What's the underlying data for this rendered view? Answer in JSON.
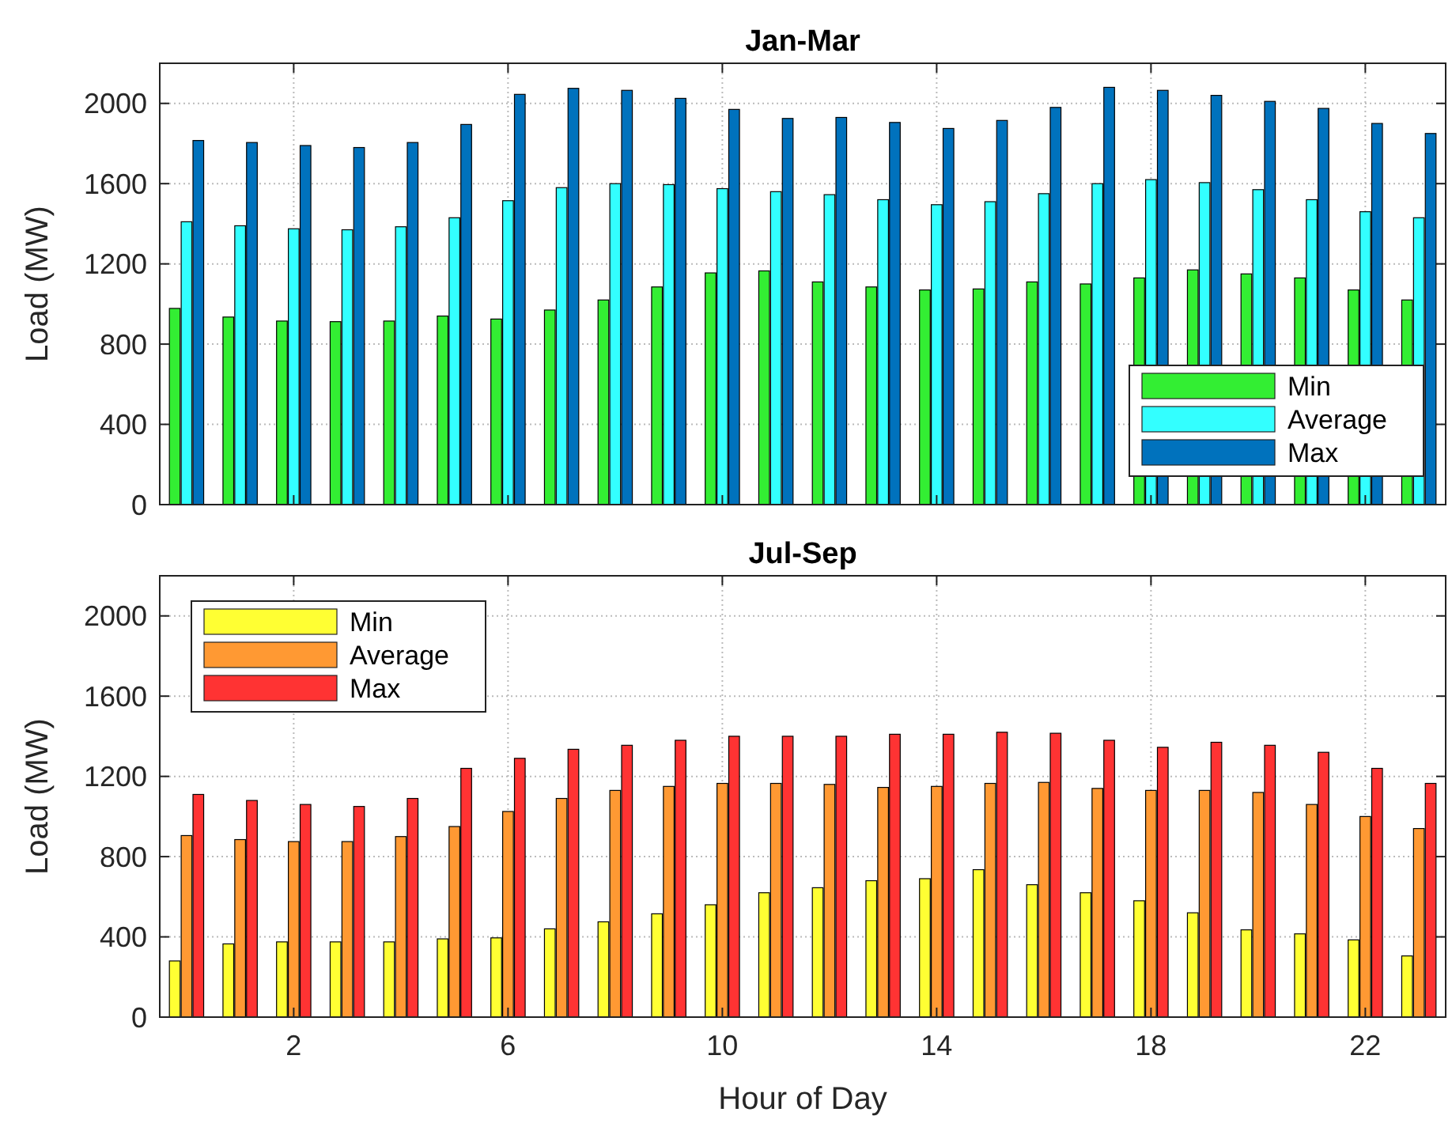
{
  "chart_data": [
    {
      "type": "bar",
      "title": "Jan-Mar",
      "ylabel": "Load (MW)",
      "x": [
        0,
        1,
        2,
        3,
        4,
        5,
        6,
        7,
        8,
        9,
        10,
        11,
        12,
        13,
        14,
        15,
        16,
        17,
        18,
        19,
        20,
        21,
        22,
        23
      ],
      "xlim": [
        -0.5,
        23.5
      ],
      "xticks": [
        2,
        6,
        10,
        14,
        18,
        22
      ],
      "ylim": [
        0,
        2200
      ],
      "yticks": [
        0,
        400,
        800,
        1200,
        1600,
        2000
      ],
      "grid": true,
      "legend": "bottom right",
      "tick_labels": "y",
      "series": [
        {
          "name": "Min",
          "color": "#33ee33",
          "values": [
            978,
            935,
            915,
            912,
            915,
            940,
            925,
            970,
            1020,
            1085,
            1155,
            1165,
            1110,
            1085,
            1070,
            1075,
            1110,
            1100,
            1130,
            1170,
            1150,
            1130,
            1070,
            1020
          ]
        },
        {
          "name": "Average",
          "color": "#33ffff",
          "values": [
            1410,
            1390,
            1375,
            1370,
            1385,
            1430,
            1515,
            1580,
            1600,
            1595,
            1575,
            1560,
            1545,
            1520,
            1495,
            1510,
            1550,
            1600,
            1620,
            1605,
            1570,
            1520,
            1460,
            1430
          ]
        },
        {
          "name": "Max",
          "color": "#0072bd",
          "values": [
            1815,
            1805,
            1790,
            1780,
            1805,
            1895,
            2045,
            2075,
            2065,
            2025,
            1970,
            1925,
            1930,
            1905,
            1875,
            1915,
            1980,
            2080,
            2065,
            2040,
            2010,
            1975,
            1900,
            1850
          ]
        }
      ]
    },
    {
      "type": "bar",
      "title": "Jul-Sep",
      "ylabel": "Load (MW)",
      "xlabel": "Hour of Day",
      "x": [
        0,
        1,
        2,
        3,
        4,
        5,
        6,
        7,
        8,
        9,
        10,
        11,
        12,
        13,
        14,
        15,
        16,
        17,
        18,
        19,
        20,
        21,
        22,
        23
      ],
      "xlim": [
        -0.5,
        23.5
      ],
      "xticks": [
        2,
        6,
        10,
        14,
        18,
        22
      ],
      "ylim": [
        0,
        2200
      ],
      "yticks": [
        0,
        400,
        800,
        1200,
        1600,
        2000
      ],
      "grid": true,
      "legend": "top left",
      "series": [
        {
          "name": "Min",
          "color": "#ffff33",
          "values": [
            280,
            365,
            375,
            375,
            375,
            390,
            395,
            440,
            475,
            515,
            560,
            620,
            645,
            680,
            690,
            735,
            660,
            620,
            580,
            520,
            435,
            415,
            385,
            305
          ]
        },
        {
          "name": "Average",
          "color": "#ff9933",
          "values": [
            905,
            885,
            875,
            875,
            900,
            950,
            1025,
            1090,
            1130,
            1150,
            1165,
            1165,
            1160,
            1145,
            1150,
            1165,
            1170,
            1140,
            1130,
            1130,
            1120,
            1060,
            1000,
            940
          ]
        },
        {
          "name": "Max",
          "color": "#ff3333",
          "values": [
            1110,
            1080,
            1060,
            1050,
            1090,
            1240,
            1290,
            1335,
            1355,
            1380,
            1400,
            1400,
            1400,
            1410,
            1410,
            1420,
            1415,
            1380,
            1345,
            1370,
            1355,
            1320,
            1240,
            1165
          ]
        }
      ]
    }
  ]
}
